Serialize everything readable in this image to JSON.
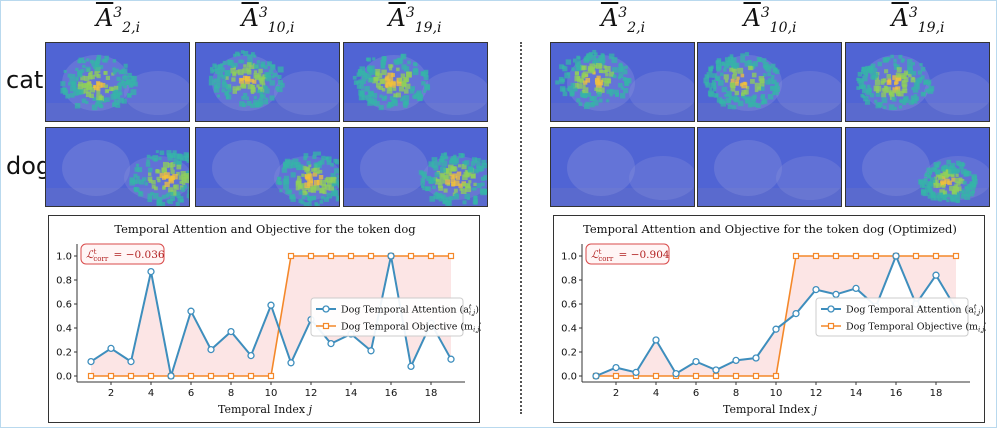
{
  "headers": [
    {
      "symbol": "A",
      "sup": "3",
      "sub": "2,i"
    },
    {
      "symbol": "A",
      "sup": "3",
      "sub": "10,i"
    },
    {
      "symbol": "A",
      "sup": "3",
      "sub": "19,i"
    }
  ],
  "row_labels": [
    "cat",
    "dog"
  ],
  "colors": {
    "attention": "#3e8ebd",
    "objective": "#f4882a",
    "fill": "#fbe1e1",
    "corr_box": "#d94a4a"
  },
  "chart_data": [
    {
      "type": "line",
      "title": "Temporal Attention and Objective for the token dog",
      "xlabel": "Temporal Index j",
      "ylabel": "",
      "corr_label": "ℒ",
      "corr_sup": "t",
      "corr_sub": "corr",
      "corr_value": "= −0.036",
      "x": [
        1,
        2,
        3,
        4,
        5,
        6,
        7,
        8,
        9,
        10,
        11,
        12,
        13,
        14,
        15,
        16,
        17,
        18,
        19
      ],
      "xticks": [
        "2",
        "4",
        "6",
        "8",
        "10",
        "12",
        "14",
        "16",
        "18"
      ],
      "yticks": [
        "0.0",
        "0.2",
        "0.4",
        "0.6",
        "0.8",
        "1.0"
      ],
      "ylim": [
        0,
        1.0
      ],
      "legend_position": "center-right",
      "series": [
        {
          "name": "Dog Temporal Attention (a",
          "name_sup": "t",
          "name_sub": "i,j",
          "name_end": ")",
          "values": [
            0.12,
            0.23,
            0.12,
            0.87,
            0.0,
            0.54,
            0.22,
            0.37,
            0.17,
            0.59,
            0.11,
            0.47,
            0.27,
            0.35,
            0.21,
            1.0,
            0.08,
            0.44,
            0.14
          ]
        },
        {
          "name": "Dog Temporal Objective (m",
          "name_sup": "",
          "name_sub": "i,j",
          "name_end": ")",
          "values": [
            0,
            0,
            0,
            0,
            0,
            0,
            0,
            0,
            0,
            0,
            1,
            1,
            1,
            1,
            1,
            1,
            1,
            1,
            1
          ]
        }
      ]
    },
    {
      "type": "line",
      "title": "Temporal Attention and Objective for the token dog (Optimized)",
      "xlabel": "Temporal Index j",
      "ylabel": "",
      "corr_label": "ℒ",
      "corr_sup": "t",
      "corr_sub": "corr",
      "corr_value": "= −0.904",
      "x": [
        1,
        2,
        3,
        4,
        5,
        6,
        7,
        8,
        9,
        10,
        11,
        12,
        13,
        14,
        15,
        16,
        17,
        18,
        19
      ],
      "xticks": [
        "2",
        "4",
        "6",
        "8",
        "10",
        "12",
        "14",
        "16",
        "18"
      ],
      "yticks": [
        "0.0",
        "0.2",
        "0.4",
        "0.6",
        "0.8",
        "1.0"
      ],
      "ylim": [
        0,
        1.0
      ],
      "legend_position": "center-right",
      "series": [
        {
          "name": "Dog Temporal Attention (a",
          "name_sup": "t",
          "name_sub": "i,j",
          "name_end": ")",
          "values": [
            0.0,
            0.07,
            0.03,
            0.3,
            0.02,
            0.12,
            0.05,
            0.13,
            0.15,
            0.39,
            0.52,
            0.72,
            0.68,
            0.73,
            0.58,
            1.0,
            0.6,
            0.84,
            0.56
          ]
        },
        {
          "name": "Dog Temporal Objective (m",
          "name_sup": "",
          "name_sub": "i,j",
          "name_end": ")",
          "values": [
            0,
            0,
            0,
            0,
            0,
            0,
            0,
            0,
            0,
            0,
            1,
            1,
            1,
            1,
            1,
            1,
            1,
            1,
            1
          ]
        }
      ]
    }
  ]
}
